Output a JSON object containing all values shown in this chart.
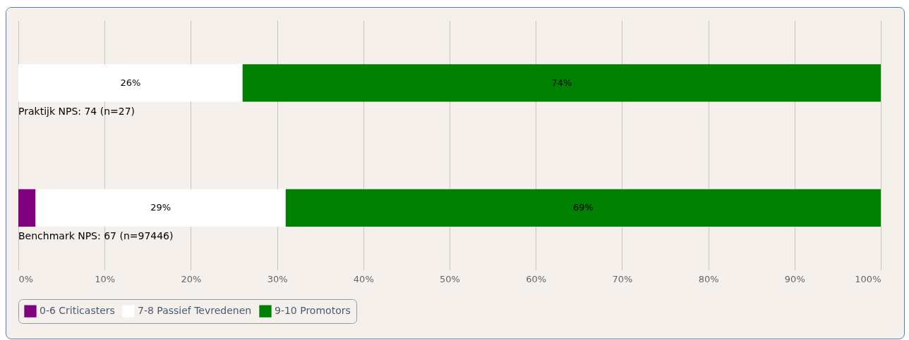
{
  "chart_data": {
    "type": "bar",
    "orientation": "horizontal",
    "stacked": true,
    "categories": [
      "Praktijk NPS: 74 (n=27)",
      "Benchmark NPS: 67 (n=97446)"
    ],
    "series": [
      {
        "name": "0-6 Criticasters",
        "color": "#800080",
        "values": [
          0,
          2
        ],
        "value_labels": [
          null,
          null
        ]
      },
      {
        "name": "7-8 Passief Tevredenen",
        "color": "#ffffff",
        "values": [
          26,
          29
        ],
        "value_labels": [
          "26%",
          "29%"
        ]
      },
      {
        "name": "9-10 Promotors",
        "color": "#008000",
        "values": [
          74,
          69
        ],
        "value_labels": [
          "74%",
          "69%"
        ]
      }
    ],
    "xlim": [
      0,
      100
    ],
    "xticks": [
      {
        "value": 0,
        "label": "0%"
      },
      {
        "value": 10,
        "label": "10%"
      },
      {
        "value": 20,
        "label": "20%"
      },
      {
        "value": 30,
        "label": "30%"
      },
      {
        "value": 40,
        "label": "40%"
      },
      {
        "value": 50,
        "label": "50%"
      },
      {
        "value": 60,
        "label": "60%"
      },
      {
        "value": 70,
        "label": "70%"
      },
      {
        "value": 80,
        "label": "80%"
      },
      {
        "value": 90,
        "label": "90%"
      },
      {
        "value": 100,
        "label": "100%"
      }
    ],
    "grid": "x",
    "legend": "bottom"
  }
}
